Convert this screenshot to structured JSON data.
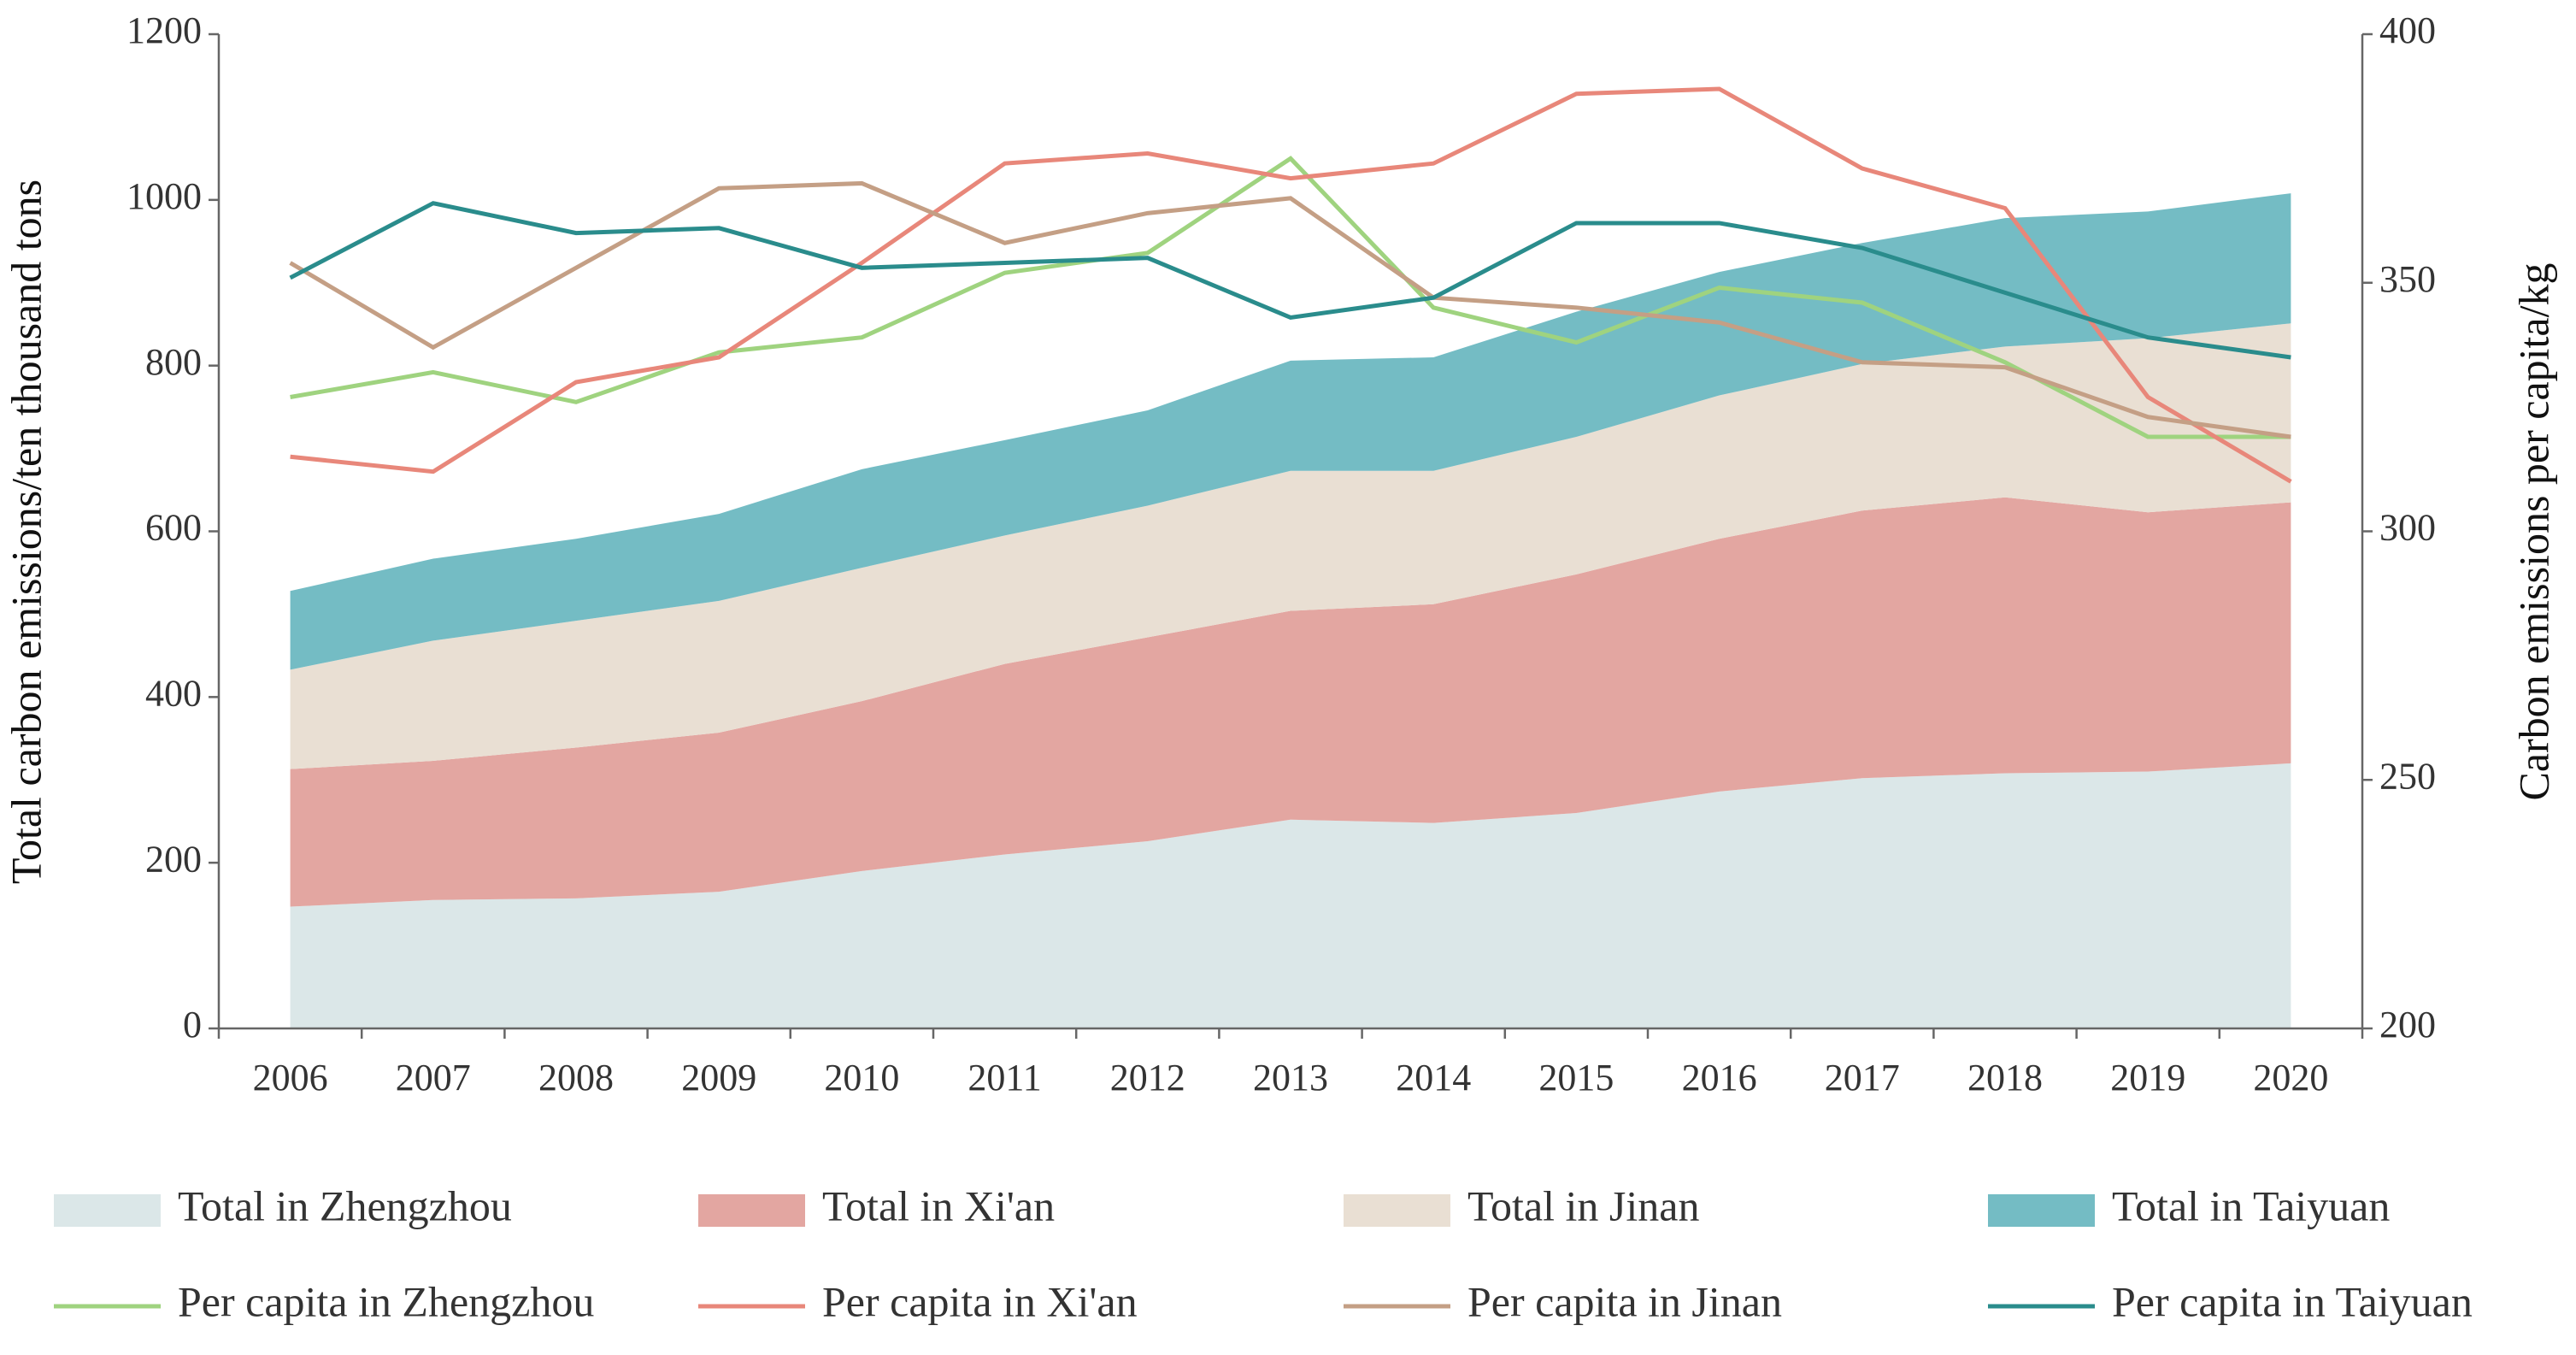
{
  "chart_data": {
    "type": "area",
    "y_label": "Total carbon emissions/ten thousand tons",
    "y2_label": "Carbon emissions per capita/kg",
    "categories": [
      "2006",
      "2007",
      "2008",
      "2009",
      "2010",
      "2011",
      "2012",
      "2013",
      "2014",
      "2015",
      "2016",
      "2017",
      "2018",
      "2019",
      "2020"
    ],
    "ylim": [
      0,
      1200
    ],
    "yticks": [
      0,
      200,
      400,
      600,
      800,
      1000,
      1200
    ],
    "y2lim": [
      200,
      400
    ],
    "y2ticks": [
      200,
      250,
      300,
      350,
      400
    ],
    "stacked": true,
    "series": [
      {
        "name": "Total in Zhengzhou",
        "type": "area",
        "color": "#dbe7e8",
        "values": [
          147,
          155,
          157,
          165,
          190,
          210,
          226,
          252,
          248,
          260,
          286,
          302,
          308,
          310,
          320
        ]
      },
      {
        "name": "Total in Xi'an",
        "type": "area",
        "color": "#e3a6a1",
        "values": [
          166,
          168,
          182,
          192,
          205,
          230,
          246,
          252,
          264,
          288,
          305,
          323,
          333,
          313,
          315
        ]
      },
      {
        "name": "Total in Jinan",
        "type": "area",
        "color": "#e9dfd3",
        "values": [
          120,
          145,
          153,
          159,
          161,
          155,
          159,
          169,
          161,
          166,
          173,
          177,
          182,
          210,
          216
        ]
      },
      {
        "name": "Total in Taiyuan",
        "type": "area",
        "color": "#74bcc4",
        "values": [
          95,
          99,
          99,
          105,
          119,
          115,
          115,
          133,
          137,
          151,
          149,
          146,
          155,
          153,
          157
        ]
      },
      {
        "name": "Per capita in Zhengzhou",
        "type": "line",
        "axis": "y2",
        "color": "#9fd37f",
        "values": [
          327,
          332,
          326,
          336,
          339,
          352,
          356,
          375,
          345,
          338,
          349,
          346,
          334,
          319,
          319
        ]
      },
      {
        "name": "Per capita in Xi'an",
        "type": "line",
        "axis": "y2",
        "color": "#e8877a",
        "values": [
          315,
          312,
          330,
          335,
          354,
          374,
          376,
          371,
          374,
          388,
          389,
          373,
          365,
          327,
          310
        ]
      },
      {
        "name": "Per capita in Jinan",
        "type": "line",
        "axis": "y2",
        "color": "#c49f85",
        "values": [
          354,
          337,
          353,
          369,
          370,
          358,
          364,
          367,
          347,
          345,
          342,
          334,
          333,
          323,
          319
        ]
      },
      {
        "name": "Per capita in Taiyuan",
        "type": "line",
        "axis": "y2",
        "color": "#2a8c8c",
        "values": [
          351,
          366,
          360,
          361,
          353,
          354,
          355,
          343,
          347,
          362,
          362,
          357,
          348,
          339,
          335
        ]
      }
    ]
  }
}
